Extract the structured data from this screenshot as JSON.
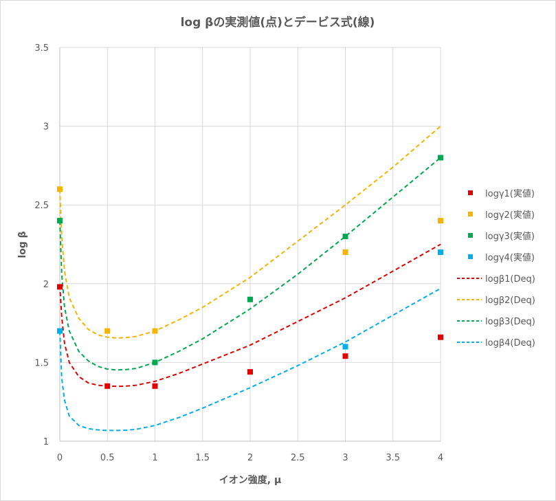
{
  "chart_data": {
    "type": "scatter",
    "title": "log βの実測値(点)とデービス式(線)",
    "xlabel": "イオン強度, μ",
    "ylabel": "log β",
    "xlim": [
      0,
      4
    ],
    "ylim": [
      1,
      3.5
    ],
    "x_ticks": [
      "0",
      "0.5",
      "1",
      "1.5",
      "2",
      "2.5",
      "3",
      "3.5",
      "4"
    ],
    "y_ticks": [
      "1",
      "1.5",
      "2",
      "2.5",
      "3",
      "3.5"
    ],
    "grid": true,
    "legend_position": "right",
    "points": [
      {
        "name": "logγ1(実値)",
        "color": "#e00000",
        "x": [
          0,
          0.5,
          1,
          2,
          3,
          4
        ],
        "y": [
          1.98,
          1.35,
          1.35,
          1.44,
          1.54,
          1.66
        ]
      },
      {
        "name": "logγ2(実値)",
        "color": "#f5b400",
        "x": [
          0,
          0.5,
          1,
          3,
          4
        ],
        "y": [
          2.6,
          1.7,
          1.7,
          2.2,
          2.4
        ]
      },
      {
        "name": "logγ3(実値)",
        "color": "#00a84f",
        "x": [
          0,
          1,
          2,
          3,
          4
        ],
        "y": [
          2.4,
          1.5,
          1.9,
          2.3,
          2.8
        ]
      },
      {
        "name": "logγ4(実値)",
        "color": "#00aee8",
        "x": [
          0,
          3,
          4
        ],
        "y": [
          1.7,
          1.6,
          2.2
        ]
      }
    ],
    "lines": [
      {
        "name": "logβ1(Deq)",
        "color": "#e00000",
        "x": [
          0,
          0.02,
          0.05,
          0.1,
          0.2,
          0.3,
          0.4,
          0.5,
          0.6,
          0.7,
          0.8,
          1,
          1.25,
          1.5,
          2,
          2.5,
          3,
          3.5,
          4
        ],
        "y": [
          1.99,
          1.79,
          1.62,
          1.5,
          1.41,
          1.37,
          1.355,
          1.35,
          1.348,
          1.35,
          1.355,
          1.38,
          1.43,
          1.49,
          1.61,
          1.76,
          1.91,
          2.08,
          2.25
        ]
      },
      {
        "name": "logβ2(Deq)",
        "color": "#f5b400",
        "x": [
          0,
          0.02,
          0.05,
          0.1,
          0.2,
          0.3,
          0.4,
          0.5,
          0.6,
          0.7,
          0.8,
          1,
          1.25,
          1.5,
          2,
          2.5,
          3,
          3.5,
          4
        ],
        "y": [
          2.6,
          2.3,
          2.08,
          1.91,
          1.78,
          1.71,
          1.675,
          1.66,
          1.655,
          1.658,
          1.665,
          1.7,
          1.77,
          1.85,
          2.04,
          2.27,
          2.5,
          2.74,
          3.0
        ]
      },
      {
        "name": "logβ3(Deq)",
        "color": "#00a84f",
        "x": [
          0,
          0.02,
          0.05,
          0.1,
          0.2,
          0.3,
          0.4,
          0.5,
          0.6,
          0.7,
          0.8,
          1,
          1.25,
          1.5,
          2,
          2.5,
          3,
          3.5,
          4
        ],
        "y": [
          2.4,
          2.06,
          1.85,
          1.7,
          1.57,
          1.51,
          1.475,
          1.458,
          1.452,
          1.455,
          1.462,
          1.5,
          1.57,
          1.65,
          1.84,
          2.06,
          2.3,
          2.55,
          2.8
        ]
      },
      {
        "name": "logβ4(Deq)",
        "color": "#00aee8",
        "x": [
          0,
          0.02,
          0.05,
          0.1,
          0.2,
          0.3,
          0.4,
          0.5,
          0.6,
          0.7,
          0.8,
          1,
          1.25,
          1.5,
          2,
          2.5,
          3,
          3.5,
          4
        ],
        "y": [
          1.7,
          1.4,
          1.26,
          1.16,
          1.1,
          1.08,
          1.072,
          1.068,
          1.068,
          1.07,
          1.075,
          1.1,
          1.15,
          1.21,
          1.34,
          1.48,
          1.63,
          1.8,
          1.97
        ]
      }
    ]
  }
}
